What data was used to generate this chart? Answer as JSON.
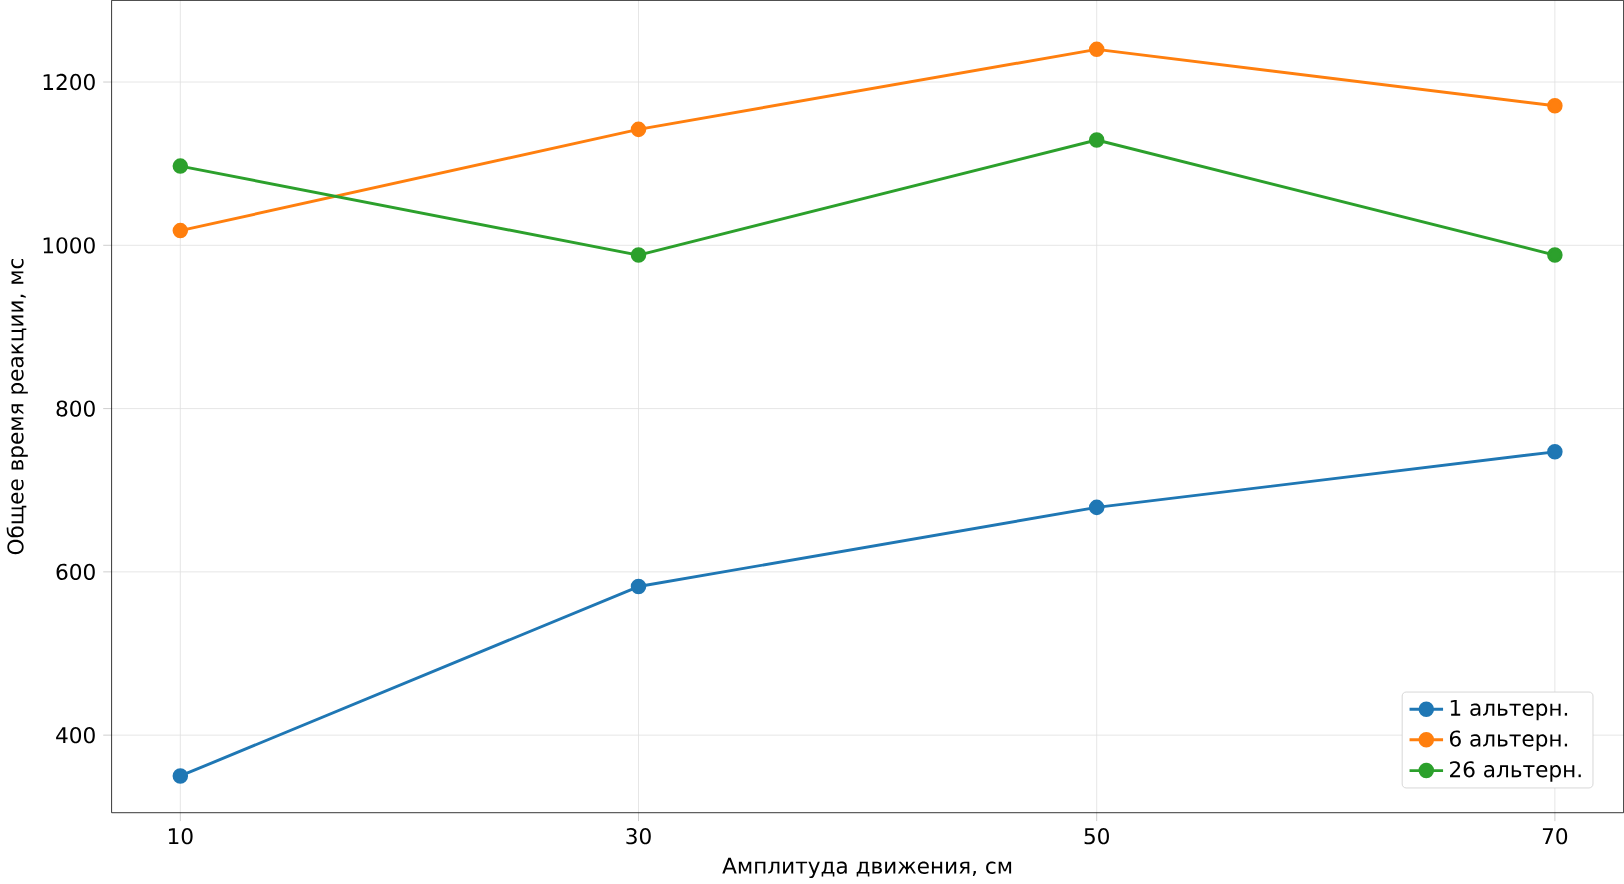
{
  "chart_data": {
    "type": "line",
    "xlabel": "Амплитуда движения, см",
    "ylabel": "Общее время реакции, мс",
    "x": [
      10,
      30,
      50,
      70
    ],
    "series": [
      {
        "name": "1 альтерн.",
        "color": "#1f77b4",
        "values": [
          350,
          582,
          679,
          747
        ]
      },
      {
        "name": "6 альтерн.",
        "color": "#ff7f0e",
        "values": [
          1018,
          1142,
          1240,
          1171
        ]
      },
      {
        "name": "26 альтерн.",
        "color": "#2ca02c",
        "values": [
          1097,
          988,
          1129,
          988
        ]
      }
    ],
    "xlim": [
      7,
      73
    ],
    "ylim": [
      305,
      1300
    ],
    "xticks": [
      10,
      30,
      50,
      70
    ],
    "yticks": [
      400,
      600,
      800,
      1000,
      1200
    ],
    "grid": true,
    "legend": "bottom right",
    "marker": "circle",
    "line_style": "solid"
  }
}
